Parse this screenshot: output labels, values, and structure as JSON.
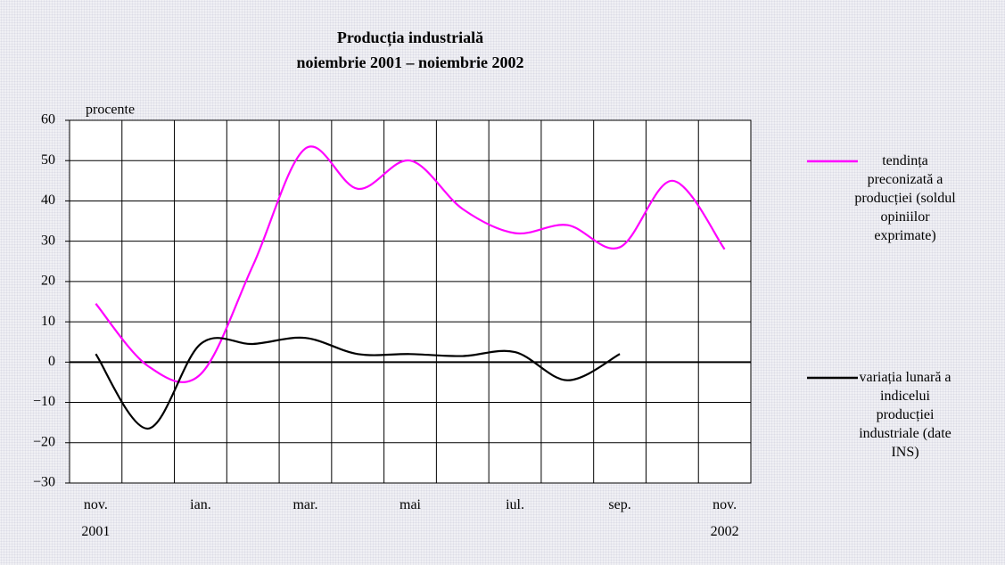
{
  "chart_data": {
    "type": "line",
    "title": "Producția industrială",
    "subtitle": "noiembrie 2001 – noiembrie 2002",
    "ylabel": "procente",
    "categories": [
      "nov.\n2001",
      null,
      "ian.",
      null,
      "mar.",
      null,
      "mai",
      null,
      "iul.",
      null,
      "sep.",
      null,
      "nov.\n2002"
    ],
    "series": [
      {
        "name": "tendința preconizată a producției (soldul opiniilor exprimate)",
        "color": "#ff00ff",
        "values": [
          14.5,
          -1,
          -3,
          24,
          53,
          43,
          50,
          38,
          32,
          34,
          28.5,
          45,
          28
        ]
      },
      {
        "name": "variația lunară a indicelui producției industriale (date INS)",
        "color": "#000000",
        "values": [
          2,
          -16.5,
          4.5,
          4.5,
          6,
          2,
          2,
          1.5,
          2.5,
          -4.5,
          2,
          null,
          null
        ]
      }
    ],
    "ylim": [
      -30,
      60
    ],
    "yticks": [
      {
        "value": -30,
        "label": "−30"
      },
      {
        "value": -20,
        "label": "−20"
      },
      {
        "value": -10,
        "label": "−10"
      },
      0,
      10,
      20,
      30,
      40,
      50,
      60
    ],
    "grid": true,
    "legend": "right"
  }
}
